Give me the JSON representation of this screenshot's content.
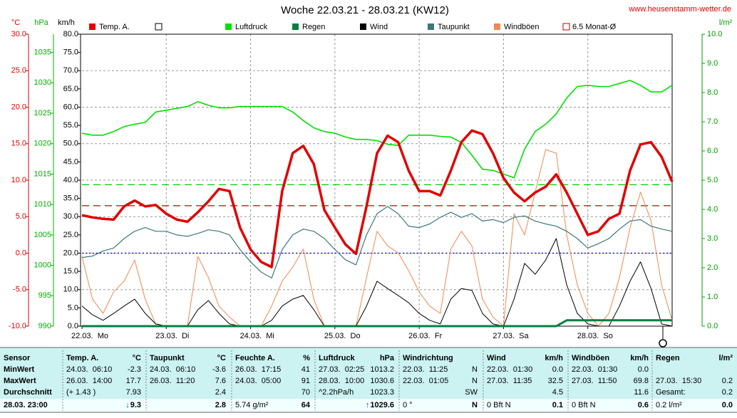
{
  "chart_data": {
    "type": "line",
    "title": "Woche 22.03.21 - 28.03.21 (KW12)",
    "source": "www.heusenstamm-wetter.de",
    "x": [
      0,
      3,
      6,
      9,
      12,
      15,
      18,
      21,
      24,
      27,
      30,
      33,
      36,
      39,
      42,
      45,
      48,
      51,
      54,
      57,
      60,
      63,
      66,
      69,
      72,
      75,
      78,
      81,
      84,
      87,
      90,
      93,
      96,
      99,
      102,
      105,
      108,
      111,
      114,
      117,
      120,
      123,
      126,
      129,
      132,
      135,
      138,
      141,
      144,
      147,
      150,
      153,
      156,
      159,
      162,
      165,
      168
    ],
    "xlim": [
      0,
      168
    ],
    "xticks": [
      {
        "value": 0,
        "label": "22.03.  Mo"
      },
      {
        "value": 24,
        "label": "23.03.  Di"
      },
      {
        "value": 48,
        "label": "24.03.  Mi"
      },
      {
        "value": 72,
        "label": "25.03.  Do"
      },
      {
        "value": 96,
        "label": "26.03.  Fr"
      },
      {
        "value": 120,
        "label": "27.03.  Sa"
      },
      {
        "value": 144,
        "label": "28.03.  So"
      }
    ],
    "grid": true,
    "grid_axis": 0,
    "axes": [
      {
        "label": "°C",
        "color": "#e00000",
        "lim": [
          -10,
          30
        ],
        "ticks": [
          {
            "value": -10,
            "label": "-10.0"
          },
          {
            "value": -5,
            "label": "-5.0"
          },
          {
            "value": 0,
            "label": "0.0"
          },
          {
            "value": 5,
            "label": "5.0"
          },
          {
            "value": 10,
            "label": "10.0"
          },
          {
            "value": 15,
            "label": "15.0"
          },
          {
            "value": 20,
            "label": "20.0"
          },
          {
            "value": 25,
            "label": "25.0"
          },
          {
            "value": 30,
            "label": "30.0"
          }
        ]
      },
      {
        "label": "hPa",
        "color": "#00b000",
        "lim": [
          990,
          1038
        ],
        "ticks": [
          990,
          995,
          1000,
          1005,
          1010,
          1015,
          1020,
          1025,
          1030,
          1035
        ]
      },
      {
        "label": "km/h",
        "color": "#000000",
        "lim": [
          0,
          80
        ],
        "ticks": [
          {
            "value": 0,
            "label": "0.0"
          },
          {
            "value": 5,
            "label": "5.0"
          },
          {
            "value": 10,
            "label": "10.0"
          },
          {
            "value": 15,
            "label": "15.0"
          },
          {
            "value": 20,
            "label": "20.0"
          },
          {
            "value": 25,
            "label": "25.0"
          },
          {
            "value": 30,
            "label": "30.0"
          },
          {
            "value": 35,
            "label": "35.0"
          },
          {
            "value": 40,
            "label": "40.0"
          },
          {
            "value": 45,
            "label": "45.0"
          },
          {
            "value": 50,
            "label": "50.0"
          },
          {
            "value": 55,
            "label": "55.0"
          },
          {
            "value": 60,
            "label": "60.0"
          },
          {
            "value": 65,
            "label": "65.0"
          },
          {
            "value": 70,
            "label": "70.0"
          },
          {
            "value": 75,
            "label": "75.0"
          },
          {
            "value": 80,
            "label": "80.0"
          }
        ]
      },
      {
        "label": "l/m²",
        "color": "#00a000",
        "lim": [
          0,
          10
        ],
        "ticks": [
          {
            "value": 0,
            "label": "0.0"
          },
          {
            "value": 1,
            "label": "1.0"
          },
          {
            "value": 2,
            "label": "2.0"
          },
          {
            "value": 3,
            "label": "3.0"
          },
          {
            "value": 4,
            "label": "4.0"
          },
          {
            "value": 5,
            "label": "5.0"
          },
          {
            "value": 6,
            "label": "6.0"
          },
          {
            "value": 7,
            "label": "7.0"
          },
          {
            "value": 8,
            "label": "8.0"
          },
          {
            "value": 9,
            "label": "9.0"
          },
          {
            "value": 10,
            "label": "10.0"
          }
        ]
      }
    ],
    "series": [
      {
        "name": "Temp. A.",
        "color": "#e00000",
        "axis": 0,
        "width": 3.5,
        "values": [
          5.2,
          4.9,
          4.7,
          4.6,
          6.4,
          7.2,
          6.4,
          6.6,
          5.4,
          4.6,
          4.3,
          5.6,
          7.1,
          8.8,
          8.5,
          3.5,
          0.5,
          -1.2,
          -1.9,
          8.5,
          13.7,
          14.7,
          12.2,
          5.9,
          3.5,
          1.2,
          -0.1,
          6.4,
          13.7,
          16.1,
          15.2,
          11.3,
          8.5,
          8.5,
          7.9,
          11.3,
          15.2,
          16.8,
          16.3,
          13.7,
          10.3,
          8.3,
          7.1,
          8.3,
          9.1,
          10.8,
          8.3,
          5.4,
          2.5,
          3.0,
          4.7,
          5.4,
          11.3,
          14.9,
          15.2,
          13.2,
          9.8
        ]
      },
      {
        "name": "Luftdruck",
        "color": "#00e000",
        "axis": 1,
        "width": 1.6,
        "values": [
          1021.7,
          1021.4,
          1021.4,
          1022.0,
          1022.8,
          1023.2,
          1023.5,
          1025.2,
          1025.5,
          1025.8,
          1026.1,
          1026.9,
          1026.3,
          1025.9,
          1025.9,
          1026.1,
          1026.1,
          1026.1,
          1026.1,
          1026.1,
          1025.2,
          1023.8,
          1022.6,
          1022.0,
          1021.7,
          1021.1,
          1020.7,
          1020.7,
          1020.5,
          1019.9,
          1019.7,
          1021.4,
          1021.4,
          1021.4,
          1021.2,
          1021.1,
          1020.2,
          1018.1,
          1015.8,
          1015.6,
          1015.0,
          1014.4,
          1019.1,
          1022.0,
          1023.2,
          1024.9,
          1027.5,
          1029.4,
          1029.6,
          1029.4,
          1029.4,
          1029.9,
          1030.4,
          1029.6,
          1028.5,
          1028.5,
          1029.6
        ]
      },
      {
        "name": "Regen",
        "color": "#008040",
        "axis": 3,
        "width": 3,
        "values": [
          0,
          0,
          0,
          0,
          0,
          0,
          0,
          0,
          0,
          0,
          0,
          0,
          0,
          0,
          0,
          0,
          0,
          0,
          0,
          0,
          0,
          0,
          0,
          0,
          0,
          0,
          0,
          0,
          0,
          0,
          0,
          0,
          0,
          0,
          0,
          0,
          0,
          0,
          0,
          0,
          0,
          0,
          0,
          0,
          0,
          0,
          0.2,
          0.2,
          0.2,
          0.2,
          0.2,
          0.2,
          0.2,
          0.2,
          0.2,
          0.2,
          0.2
        ]
      },
      {
        "name": "Wind",
        "color": "#000000",
        "axis": 2,
        "width": 1,
        "values": [
          5.5,
          3.1,
          1.6,
          3.5,
          5.5,
          7.4,
          3.5,
          0.6,
          0,
          0,
          0,
          4.5,
          7.0,
          3.5,
          0.6,
          0,
          0,
          0,
          1.6,
          5.5,
          7.4,
          8.4,
          4.5,
          0,
          0,
          0,
          0,
          5.5,
          12.3,
          10.3,
          8.4,
          6.4,
          3.5,
          1.6,
          0.6,
          7.4,
          10.3,
          9.8,
          3.5,
          0.6,
          0,
          7.4,
          17.2,
          14.2,
          18.1,
          24.0,
          11.3,
          3.5,
          0.6,
          0,
          0,
          5.5,
          12.3,
          17.6,
          10.3,
          0.6,
          0
        ]
      },
      {
        "name": "Taupunkt",
        "color": "#3c7878",
        "axis": 0,
        "width": 1.2,
        "values": [
          -0.6,
          -0.4,
          0.3,
          0.7,
          2.0,
          3.0,
          3.5,
          3.0,
          3.0,
          2.5,
          2.3,
          2.7,
          3.2,
          3.0,
          2.5,
          0.5,
          -1.2,
          -2.6,
          -3.4,
          0.5,
          2.5,
          3.3,
          3.0,
          2.0,
          0.5,
          -0.9,
          -1.6,
          2.5,
          5.4,
          6.4,
          5.4,
          3.7,
          3.5,
          4.0,
          4.9,
          5.6,
          4.9,
          5.4,
          4.4,
          4.6,
          4.2,
          4.9,
          5.1,
          4.4,
          4.0,
          3.7,
          3.0,
          2.0,
          0.7,
          1.3,
          2.0,
          3.3,
          4.4,
          4.6,
          3.7,
          3.3,
          3.0
        ]
      },
      {
        "name": "Windböen",
        "color": "#f08850",
        "axis": 2,
        "width": 1,
        "values": [
          19.1,
          7.4,
          3.5,
          9.4,
          12.3,
          18.1,
          7.4,
          0.6,
          0,
          0,
          0,
          19.1,
          13.3,
          5.5,
          2.5,
          0,
          0,
          0,
          5.5,
          12.3,
          16.2,
          21.1,
          7.4,
          0,
          0,
          0,
          0,
          13.3,
          26.0,
          22.0,
          20.1,
          15.2,
          9.4,
          5.5,
          3.5,
          21.1,
          26.0,
          22.0,
          7.4,
          2.5,
          0,
          30.8,
          25.0,
          36.7,
          48.4,
          47.4,
          25.0,
          11.3,
          3.5,
          0,
          3.5,
          13.3,
          26.9,
          36.7,
          28.9,
          11.3,
          1.6
        ]
      }
    ],
    "reference_lines": [
      {
        "label": "6.5 Monat-Ø",
        "axis": 0,
        "value": 6.5,
        "color": "#c00000",
        "dash": "dashed"
      },
      {
        "axis": 1,
        "value": 1013.25,
        "color": "#00d000",
        "dash": "dashed"
      },
      {
        "axis": 0,
        "value": 0,
        "color": "#0000d0",
        "dash": "dotted"
      }
    ]
  },
  "table": {
    "columns": [
      {
        "name": "Sensor"
      },
      {
        "name": "Temp. A.",
        "unit": "°C"
      },
      {
        "name": "Taupunkt",
        "unit": "°C"
      },
      {
        "name": "Feuchte A.",
        "unit": "%"
      },
      {
        "name": "Luftdruck",
        "unit": "hPa"
      },
      {
        "name": "Windrichtung"
      },
      {
        "name": "Wind",
        "unit": "km/h"
      },
      {
        "name": "Windböen",
        "unit": "km/h"
      },
      {
        "name": "Regen",
        "unit": "l/m²"
      }
    ],
    "rows": [
      {
        "label": "MinWert",
        "cells": [
          {
            "left": "24.03.  06:10",
            "right": "-2.3"
          },
          {
            "left": "24.03.  06:10",
            "right": "-3.6"
          },
          {
            "left": "26.03.  17:15",
            "right": "41"
          },
          {
            "left": "27.03.  02:25",
            "right": "1013.2"
          },
          {
            "left": "22.03.  11:25",
            "right": "N"
          },
          {
            "left": "22.03.  01:30",
            "right": "0.0"
          },
          {
            "left": "22.03.  01:30",
            "right": "0.0"
          },
          null
        ]
      },
      {
        "label": "MaxWert",
        "cells": [
          {
            "left": "26.03.  14:00",
            "right": "17.7"
          },
          {
            "left": "26.03.  11:20",
            "right": "7.6"
          },
          {
            "left": "24.03.  05:00",
            "right": "91"
          },
          {
            "left": "28.03.  10:00",
            "right": "1030.6"
          },
          {
            "left": "22.03.  01:05",
            "right": "N"
          },
          {
            "left": "27.03.  11:35",
            "right": "32.5"
          },
          {
            "left": "27.03.  11:50",
            "right": "69.8"
          },
          {
            "left": "27.03.  15:30",
            "right": "0.2"
          }
        ]
      },
      {
        "label": "Durchschnitt",
        "cells": [
          {
            "left": "(+ 1.43 )",
            "right": "7.93"
          },
          {
            "right": "2.4"
          },
          {
            "right": "70"
          },
          {
            "left": "^2.2hPa/h",
            "right": "1023.3"
          },
          {
            "right": "SW"
          },
          {
            "right": "4.5"
          },
          {
            "right": "11.6"
          },
          {
            "left": "Gesamt:",
            "right": "0.2"
          }
        ]
      },
      {
        "label": "28.03. 23:00",
        "cells": [
          {
            "arrow": "↓",
            "right": "9.3"
          },
          {
            "right": "2.8"
          },
          {
            "left": "5.74 g/m²",
            "right": "64"
          },
          {
            "arrow": "↑",
            "right": "1029.6"
          },
          {
            "left": "0 °",
            "right": "N"
          },
          {
            "left": "0 Bft N",
            "right": "0.1"
          },
          {
            "left": "0 Bft N",
            "right": "0.6"
          },
          {
            "left": "0.2 l/m²",
            "right": "0.0"
          }
        ]
      }
    ]
  }
}
